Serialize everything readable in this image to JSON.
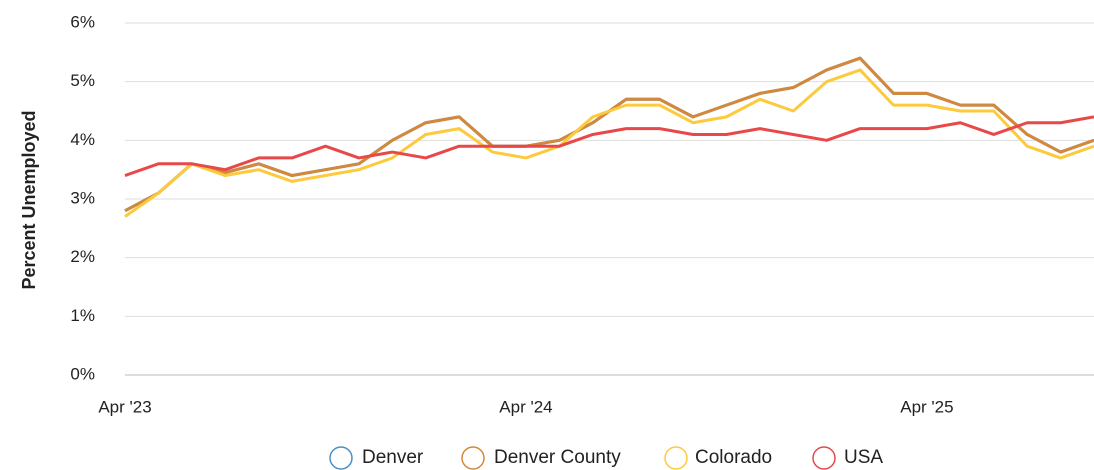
{
  "chart_data": {
    "type": "line",
    "y_label": "Percent Unemployed",
    "categories": [
      "Apr '23",
      null,
      null,
      null,
      null,
      null,
      null,
      null,
      null,
      null,
      null,
      null,
      "Apr '24",
      null,
      null,
      null,
      null,
      null,
      null,
      null,
      null,
      null,
      null,
      null,
      "Apr '25",
      null,
      null,
      null,
      null,
      null
    ],
    "ylim": [
      0,
      6
    ],
    "yticks": [
      {
        "value": 0,
        "label": "0%"
      },
      {
        "value": 1,
        "label": "1%"
      },
      {
        "value": 2,
        "label": "2%"
      },
      {
        "value": 3,
        "label": "3%"
      },
      {
        "value": 4,
        "label": "4%"
      },
      {
        "value": 5,
        "label": "5%"
      },
      {
        "value": 6,
        "label": "6%"
      }
    ],
    "grid": true,
    "legend": "bottom",
    "series": [
      {
        "name": "Denver",
        "color": "#4a90c4",
        "values": [
          2.8,
          3.1,
          3.6,
          3.45,
          3.6,
          3.4,
          3.5,
          3.6,
          4.0,
          4.3,
          4.4,
          3.9,
          3.9,
          4.0,
          4.3,
          4.7,
          4.7,
          4.4,
          4.6,
          4.8,
          4.9,
          5.2,
          5.4,
          4.8,
          4.8,
          4.6,
          4.6,
          4.1,
          3.8,
          4.0
        ]
      },
      {
        "name": "Denver County",
        "color": "#d4883a",
        "values": [
          2.8,
          3.1,
          3.6,
          3.45,
          3.6,
          3.4,
          3.5,
          3.6,
          4.0,
          4.3,
          4.4,
          3.9,
          3.9,
          4.0,
          4.3,
          4.7,
          4.7,
          4.4,
          4.6,
          4.8,
          4.9,
          5.2,
          5.4,
          4.8,
          4.8,
          4.6,
          4.6,
          4.1,
          3.8,
          4.0
        ]
      },
      {
        "name": "Colorado",
        "color": "#fcca3c",
        "values": [
          2.7,
          3.1,
          3.6,
          3.4,
          3.5,
          3.3,
          3.4,
          3.5,
          3.7,
          4.1,
          4.2,
          3.8,
          3.7,
          3.9,
          4.4,
          4.6,
          4.6,
          4.3,
          4.4,
          4.7,
          4.5,
          5.0,
          5.2,
          4.6,
          4.6,
          4.5,
          4.5,
          3.9,
          3.7,
          3.9
        ]
      },
      {
        "name": "USA",
        "color": "#e84848",
        "values": [
          3.4,
          3.6,
          3.6,
          3.5,
          3.7,
          3.7,
          3.9,
          3.7,
          3.8,
          3.7,
          3.9,
          3.9,
          3.9,
          3.9,
          4.1,
          4.2,
          4.2,
          4.1,
          4.1,
          4.2,
          4.1,
          4.0,
          4.2,
          4.2,
          4.2,
          4.3,
          4.1,
          4.3,
          4.3,
          4.4
        ]
      }
    ]
  }
}
